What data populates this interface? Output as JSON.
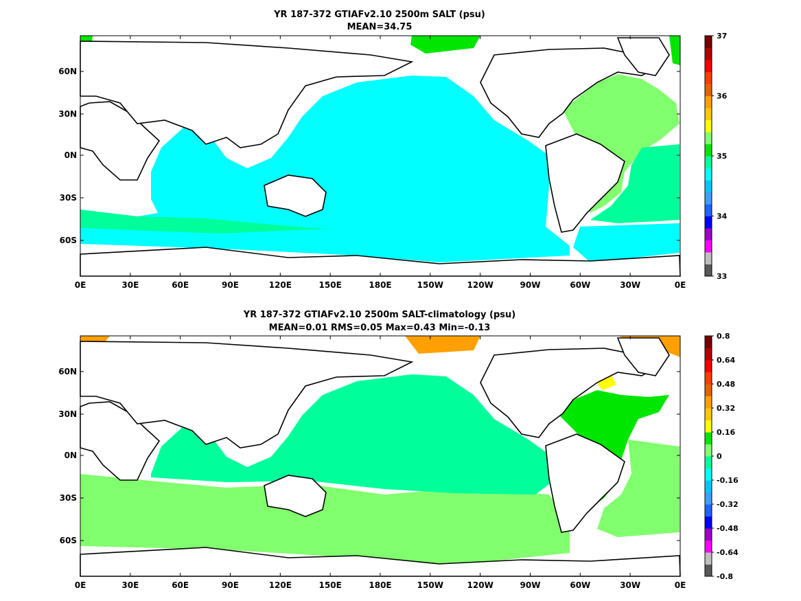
{
  "chart_data": [
    {
      "type": "heatmap",
      "title": "YR 187-372 GTIAFv2.10 2500m SALT (psu)",
      "subtitle": "MEAN=34.75",
      "x_ticks": [
        "0E",
        "30E",
        "60E",
        "90E",
        "120E",
        "150E",
        "180E",
        "150W",
        "120W",
        "90W",
        "60W",
        "30W",
        "0E"
      ],
      "y_ticks": [
        "60N",
        "30N",
        "0N",
        "30S",
        "60S"
      ],
      "colorbar": {
        "labels": [
          "37",
          "36",
          "35",
          "34",
          "33"
        ],
        "colors": [
          "#595959",
          "#bfbfbf",
          "#ff00ff",
          "#a000c8",
          "#0000ff",
          "#1e64ff",
          "#3ca0ff",
          "#00c8ff",
          "#00ffff",
          "#00ff9b",
          "#00e600",
          "#82ff6e",
          "#ffff00",
          "#ffc800",
          "#ffa000",
          "#e66400",
          "#ff3c00",
          "#ff0000",
          "#b40000",
          "#780000"
        ]
      },
      "fields": {
        "pacific_indian": "#00ffff",
        "southern_band": "#00ff9b",
        "atlantic": "#82ff6e",
        "arctic": "#00e600"
      }
    },
    {
      "type": "heatmap",
      "title": "YR 187-372 GTIAFv2.10 2500m SALT-climatology (psu)",
      "subtitle": "MEAN=0.01   RMS=0.05   Max=0.43   Min=-0.13",
      "x_ticks": [
        "0E",
        "30E",
        "60E",
        "90E",
        "120E",
        "150E",
        "180E",
        "150W",
        "120W",
        "90W",
        "60W",
        "30W",
        "0E"
      ],
      "y_ticks": [
        "60N",
        "30N",
        "0N",
        "30S",
        "60S"
      ],
      "colorbar": {
        "labels": [
          "0.8",
          "0.64",
          "0.48",
          "0.32",
          "0.16",
          "0",
          "-0.16",
          "-0.32",
          "-0.48",
          "-0.64",
          "-0.8"
        ],
        "colors": [
          "#595959",
          "#bfbfbf",
          "#ff00ff",
          "#a000c8",
          "#0000ff",
          "#1e64ff",
          "#3ca0ff",
          "#00c8ff",
          "#00ffff",
          "#00ff9b",
          "#82ff6e",
          "#00e600",
          "#ffff00",
          "#ffc800",
          "#ffa000",
          "#e66400",
          "#ff3c00",
          "#ff0000",
          "#b40000",
          "#780000"
        ]
      },
      "fields": {
        "pacific": "#00ff9b",
        "southern": "#82ff6e",
        "atlantic_positive": "#00e600",
        "arctic_orange": "#ffa000",
        "labrador_yellow": "#ffff00"
      }
    }
  ]
}
